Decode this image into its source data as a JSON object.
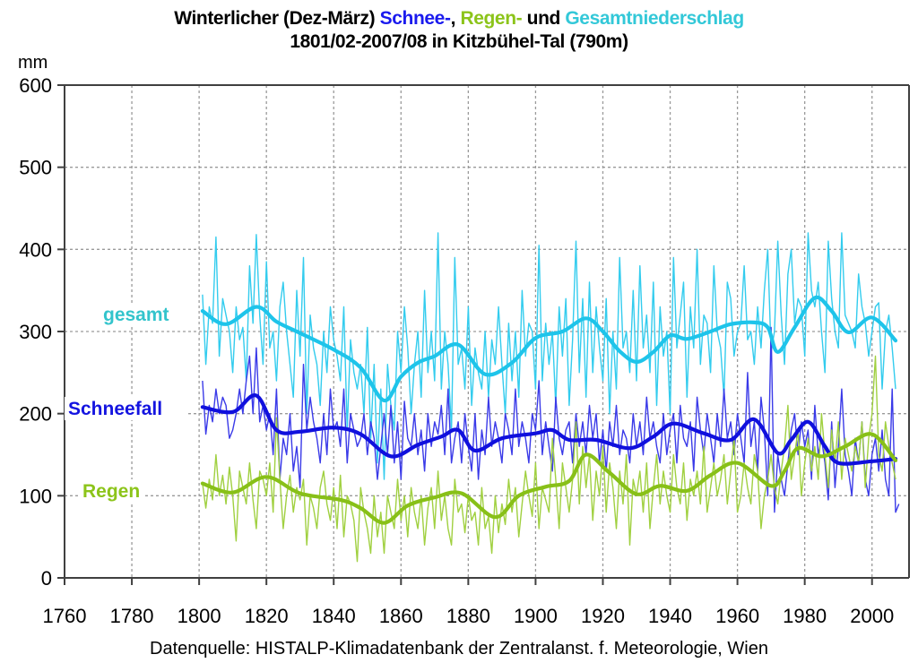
{
  "chart_data": {
    "type": "line",
    "title_parts": [
      {
        "text": "Winterlicher (Dez-März) ",
        "role": "plain"
      },
      {
        "text": "Schnee-",
        "role": "snow"
      },
      {
        "text": ", ",
        "role": "plain"
      },
      {
        "text": "Regen-",
        "role": "rain"
      },
      {
        "text": " und ",
        "role": "plain"
      },
      {
        "text": "Gesamtniederschlag",
        "role": "total"
      }
    ],
    "subtitle": "1801/02-2007/08 in Kitzbühel-Tal (790m)",
    "ylabel": "mm",
    "xlabel": "",
    "xlim": [
      1760,
      2011
    ],
    "ylim": [
      0,
      600
    ],
    "x_ticks": [
      1760,
      1780,
      1800,
      1820,
      1840,
      1860,
      1880,
      1900,
      1920,
      1940,
      1960,
      1980,
      2000
    ],
    "y_ticks": [
      0,
      100,
      200,
      300,
      400,
      500,
      600
    ],
    "grid": true,
    "source": "Datenquelle: HISTALP-Klimadatenbank der Zentralanst. f. Meteorologie, Wien",
    "colors": {
      "total": "#33ccee",
      "total_smooth": "#1ec4ea",
      "snow": "#3a3ae8",
      "snow_smooth": "#1010dd",
      "rain": "#a0d040",
      "rain_smooth": "#88c018",
      "total_label": "#33c4cc",
      "snow_label": "#1414e0",
      "rain_label": "#8cc41a"
    },
    "series_labels": [
      {
        "key": "total",
        "text": "gesamt"
      },
      {
        "key": "snow",
        "text": "Schneefall"
      },
      {
        "key": "rain",
        "text": "Regen"
      }
    ],
    "smoothed": {
      "total": {
        "x": [
          1801,
          1808,
          1817,
          1823,
          1830,
          1840,
          1848,
          1855,
          1860,
          1865,
          1870,
          1877,
          1885,
          1893,
          1900,
          1908,
          1915,
          1920,
          1925,
          1930,
          1935,
          1940,
          1945,
          1952,
          1958,
          1965,
          1969,
          1972,
          1977,
          1983,
          1988,
          1993,
          2000,
          2007
        ],
        "y": [
          325,
          309,
          330,
          312,
          298,
          278,
          256,
          216,
          245,
          262,
          270,
          284,
          248,
          262,
          292,
          300,
          316,
          300,
          276,
          263,
          275,
          295,
          291,
          300,
          309,
          311,
          305,
          275,
          305,
          341,
          325,
          299,
          317,
          289
        ]
      },
      "snow": {
        "x": [
          1801,
          1810,
          1817,
          1823,
          1830,
          1840,
          1848,
          1857,
          1865,
          1872,
          1877,
          1882,
          1890,
          1900,
          1905,
          1910,
          1918,
          1928,
          1935,
          1941,
          1950,
          1958,
          1965,
          1972,
          1976,
          1981,
          1986,
          1990,
          2000,
          2007
        ],
        "y": [
          208,
          202,
          222,
          180,
          178,
          183,
          175,
          148,
          162,
          172,
          180,
          155,
          170,
          176,
          180,
          168,
          168,
          158,
          172,
          188,
          176,
          168,
          193,
          152,
          168,
          190,
          160,
          140,
          142,
          145
        ]
      },
      "rain": {
        "x": [
          1801,
          1810,
          1820,
          1830,
          1842,
          1848,
          1855,
          1862,
          1870,
          1878,
          1888,
          1895,
          1903,
          1910,
          1915,
          1922,
          1930,
          1937,
          1945,
          1952,
          1960,
          1970,
          1974,
          1978,
          1985,
          1992,
          2000,
          2007
        ],
        "y": [
          115,
          104,
          123,
          103,
          95,
          85,
          67,
          88,
          98,
          103,
          74,
          100,
          111,
          118,
          150,
          128,
          102,
          112,
          106,
          125,
          140,
          112,
          130,
          158,
          148,
          160,
          175,
          143
        ]
      }
    },
    "annual": {
      "start_year": 1801,
      "total": [
        345,
        260,
        330,
        310,
        415,
        270,
        340,
        320,
        300,
        250,
        330,
        290,
        305,
        240,
        380,
        310,
        418,
        320,
        260,
        385,
        280,
        300,
        240,
        330,
        360,
        300,
        260,
        220,
        350,
        270,
        390,
        200,
        320,
        280,
        260,
        210,
        300,
        250,
        330,
        290,
        270,
        240,
        330,
        180,
        290,
        250,
        230,
        260,
        200,
        305,
        170,
        260,
        140,
        230,
        120,
        260,
        210,
        180,
        300,
        250,
        330,
        280,
        200,
        260,
        300,
        220,
        350,
        250,
        300,
        240,
        420,
        230,
        300,
        260,
        180,
        390,
        260,
        280,
        230,
        330,
        210,
        280,
        250,
        230,
        300,
        220,
        290,
        260,
        330,
        260,
        200,
        310,
        240,
        300,
        220,
        350,
        270,
        310,
        300,
        230,
        405,
        240,
        310,
        260,
        300,
        210,
        330,
        270,
        340,
        210,
        290,
        410,
        250,
        340,
        220,
        360,
        250,
        330,
        280,
        240,
        340,
        200,
        300,
        230,
        390,
        280,
        300,
        250,
        350,
        240,
        380,
        280,
        320,
        250,
        360,
        210,
        330,
        270,
        300,
        200,
        390,
        280,
        320,
        360,
        220,
        330,
        280,
        400,
        260,
        320,
        310,
        250,
        380,
        300,
        280,
        220,
        360,
        340,
        270,
        300,
        310,
        380,
        290,
        300,
        260,
        330,
        280,
        350,
        400,
        275,
        300,
        410,
        320,
        260,
        370,
        400,
        310,
        340,
        330,
        270,
        420,
        350,
        330,
        360,
        300,
        250,
        410,
        340,
        300,
        280,
        420,
        320,
        310,
        300,
        280,
        370,
        330,
        310,
        270,
        300,
        330,
        335,
        230,
        300,
        320,
        280,
        230
      ],
      "snow": [
        240,
        175,
        210,
        190,
        230,
        200,
        220,
        210,
        170,
        180,
        200,
        230,
        200,
        240,
        270,
        200,
        280,
        190,
        210,
        180,
        200,
        150,
        230,
        120,
        170,
        150,
        200,
        130,
        160,
        110,
        260,
        180,
        220,
        190,
        170,
        140,
        200,
        150,
        230,
        180,
        190,
        160,
        230,
        140,
        200,
        180,
        160,
        170,
        200,
        150,
        190,
        170,
        120,
        160,
        200,
        150,
        210,
        140,
        190,
        120,
        215,
        170,
        160,
        200,
        150,
        180,
        130,
        200,
        160,
        190,
        175,
        210,
        150,
        230,
        140,
        170,
        190,
        140,
        200,
        160,
        130,
        200,
        120,
        180,
        150,
        220,
        160,
        190,
        170,
        140,
        200,
        180,
        150,
        230,
        160,
        190,
        170,
        140,
        200,
        180,
        240,
        150,
        190,
        160,
        130,
        220,
        170,
        150,
        180,
        190,
        140,
        200,
        160,
        190,
        150,
        210,
        170,
        200,
        140,
        180,
        130,
        190,
        160,
        210,
        150,
        180,
        170,
        140,
        200,
        160,
        190,
        150,
        220,
        170,
        190,
        160,
        140,
        200,
        150,
        180,
        200,
        140,
        210,
        170,
        160,
        190,
        130,
        220,
        180,
        150,
        200,
        170,
        140,
        200,
        160,
        230,
        170,
        190,
        150,
        200,
        170,
        140,
        250,
        160,
        190,
        130,
        220,
        180,
        100,
        305,
        80,
        150,
        120,
        100,
        140,
        180,
        200,
        150,
        190,
        160,
        180,
        120,
        210,
        150,
        170,
        140,
        95,
        190,
        110,
        160,
        230,
        150,
        130,
        100,
        170,
        140,
        190,
        120,
        100,
        150,
        170,
        130,
        180,
        120,
        100,
        230,
        80,
        90
      ],
      "rain": [
        115,
        85,
        120,
        95,
        150,
        100,
        125,
        90,
        135,
        100,
        45,
        130,
        110,
        90,
        140,
        95,
        60,
        130,
        120,
        100,
        140,
        80,
        195,
        120,
        60,
        100,
        125,
        80,
        110,
        95,
        120,
        40,
        100,
        85,
        60,
        110,
        130,
        90,
        70,
        110,
        60,
        125,
        50,
        100,
        90,
        70,
        20,
        110,
        80,
        60,
        30,
        100,
        50,
        80,
        30,
        100,
        80,
        60,
        120,
        70,
        100,
        50,
        110,
        80,
        60,
        100,
        40,
        85,
        110,
        60,
        130,
        70,
        100,
        60,
        40,
        120,
        80,
        90,
        55,
        100,
        70,
        80,
        40,
        110,
        60,
        75,
        30,
        100,
        55,
        90,
        65,
        120,
        80,
        110,
        50,
        90,
        130,
        100,
        75,
        140,
        60,
        110,
        95,
        80,
        170,
        120,
        60,
        140,
        110,
        80,
        120,
        190,
        90,
        160,
        110,
        150,
        70,
        130,
        100,
        160,
        80,
        140,
        110,
        60,
        130,
        90,
        150,
        40,
        120,
        100,
        130,
        80,
        140,
        60,
        110,
        150,
        90,
        130,
        100,
        80,
        150,
        110,
        90,
        140,
        70,
        120,
        100,
        130,
        90,
        160,
        80,
        110,
        140,
        100,
        120,
        150,
        90,
        130,
        170,
        80,
        100,
        140,
        110,
        90,
        150,
        130,
        60,
        100,
        120,
        150,
        110,
        90,
        130,
        160,
        210,
        120,
        150,
        180,
        100,
        140,
        170,
        130,
        160,
        120,
        200,
        150,
        110,
        180,
        140,
        190,
        120,
        170,
        150,
        130,
        160,
        140,
        190,
        110,
        170,
        200,
        270,
        150,
        130,
        190,
        160,
        140,
        120
      ]
    }
  }
}
